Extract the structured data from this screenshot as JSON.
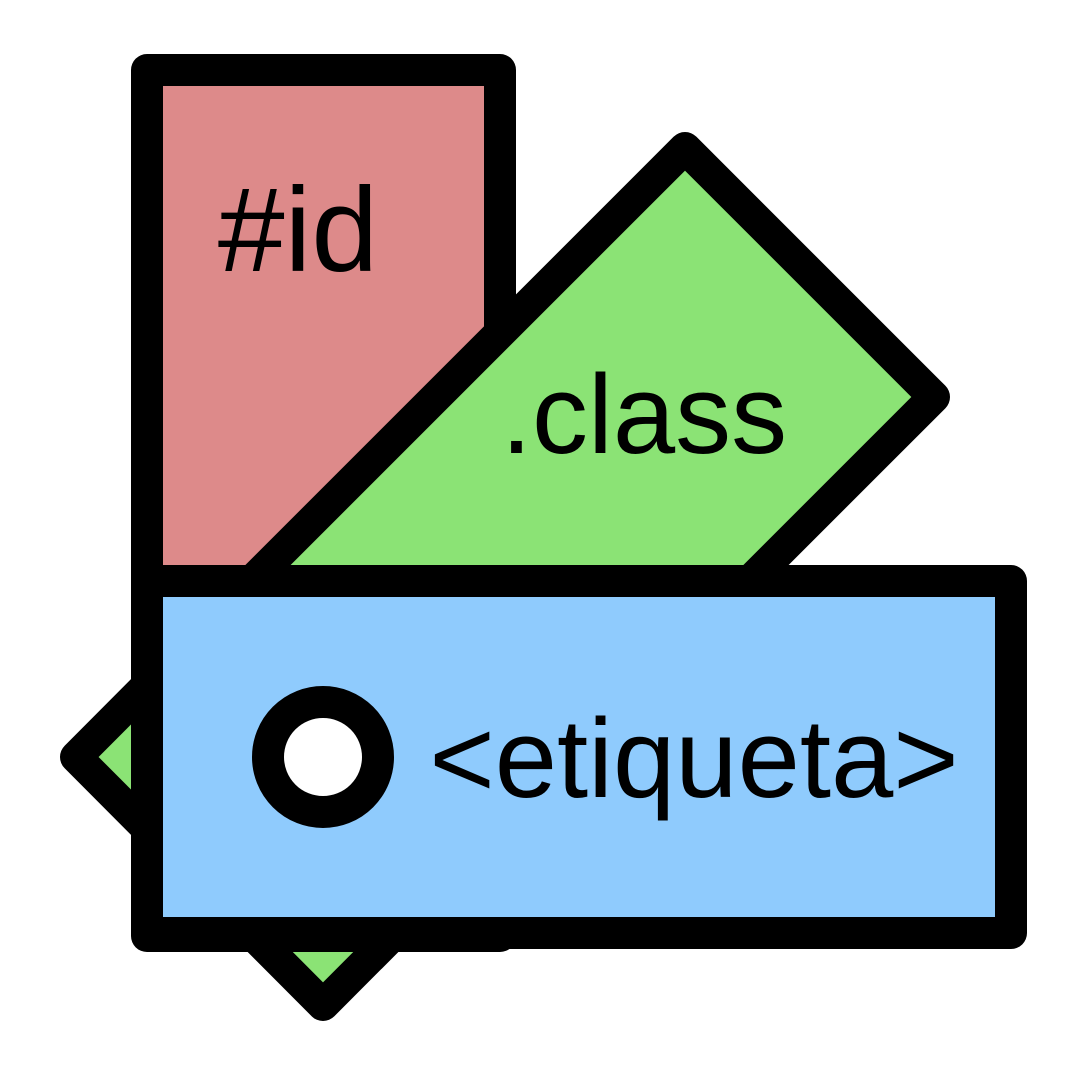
{
  "labels": {
    "id": "#id",
    "class": ".class",
    "tag": "<etiqueta>"
  },
  "colors": {
    "id_fill": "#dd8a8a",
    "class_fill": "#8be375",
    "tag_fill": "#8fcbfd",
    "stroke": "#000000",
    "circle_inner": "#ffffff"
  },
  "icons": {
    "tag_marker": "ring-icon"
  }
}
